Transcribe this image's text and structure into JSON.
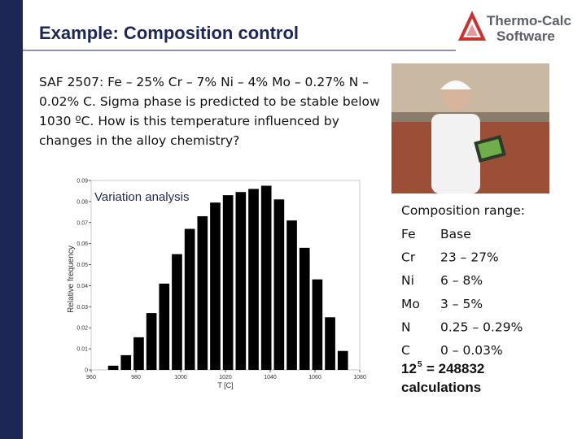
{
  "header": {
    "title": "Example: Composition control",
    "logo": [
      "Thermo-Calc",
      "Software"
    ]
  },
  "paragraph": [
    "SAF 2507: Fe – 25% Cr – 7% Ni – 4% Mo – 0.27% N –",
    "0.02% C. Sigma phase is predicted to be stable below",
    "1030 ºC. How is this temperature influenced by",
    "changes in the alloy chemistry?"
  ],
  "chart_data": {
    "type": "histogram",
    "annotation": "Variation analysis",
    "xlabel": "T [C]",
    "ylabel": "Relative frequency",
    "bins": [
      967,
      972.7,
      978.4,
      984.1,
      989.8,
      995.5,
      1001.2,
      1006.9,
      1012.6,
      1018.3,
      1024,
      1029.7,
      1035.4,
      1041.1,
      1046.8,
      1052.5,
      1058.2,
      1063.9,
      1069.6,
      1075.3
    ],
    "values": [
      0.002,
      0.007,
      0.0155,
      0.027,
      0.041,
      0.055,
      0.067,
      0.073,
      0.0795,
      0.083,
      0.0845,
      0.086,
      0.0875,
      0.081,
      0.071,
      0.058,
      0.043,
      0.025,
      0.009
    ],
    "color": "#000000",
    "xlim": [
      960,
      1080
    ],
    "xticks": [
      960,
      980,
      1000,
      1020,
      1040,
      1060,
      1080
    ],
    "ylim": [
      0,
      0.09
    ],
    "yticks": [
      0,
      0.01,
      0.02,
      0.03,
      0.04,
      0.05,
      0.06,
      0.07,
      0.08,
      0.09
    ]
  },
  "composition": {
    "title": "Composition range:",
    "rows": [
      [
        "Fe",
        "Base"
      ],
      [
        "Cr",
        "23 – 27%"
      ],
      [
        "Ni",
        "6 – 8%"
      ],
      [
        "Mo",
        "3 – 5%"
      ],
      [
        "N",
        "0.25 – 0.29%"
      ],
      [
        "C",
        "0 – 0.03%"
      ]
    ]
  },
  "calculation": {
    "base": "12",
    "exponent": "5",
    "result": "= 248832",
    "label": "calculations"
  }
}
